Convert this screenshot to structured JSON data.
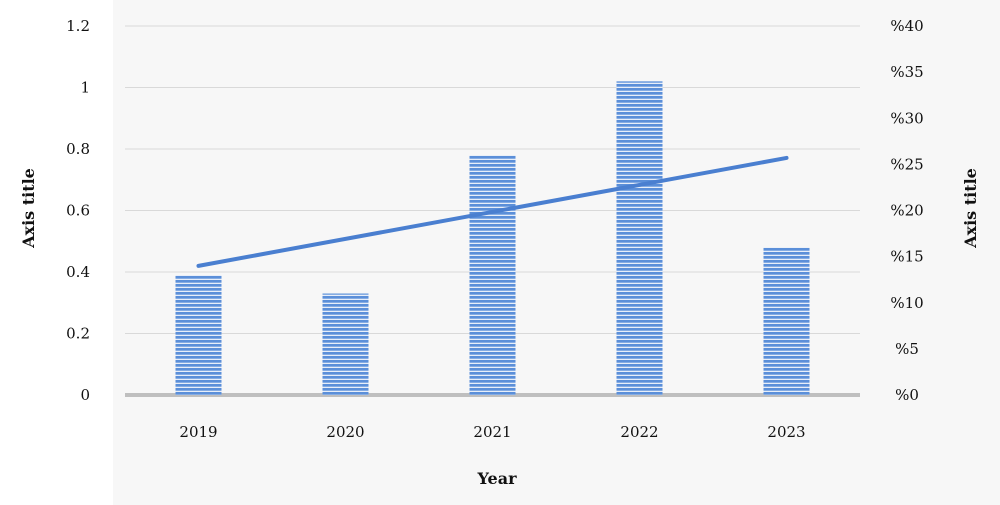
{
  "chart_data": {
    "type": "bar",
    "categories": [
      "2019",
      "2020",
      "2021",
      "2022",
      "2023"
    ],
    "values": [
      0.39,
      0.33,
      0.78,
      1.02,
      0.48
    ],
    "trend_line": {
      "y2_start": 14,
      "y2_end": 25.7
    },
    "xlabel": "Year",
    "ylabel": "Axis title",
    "y2label": "Axis title",
    "ylim": [
      0,
      1.2
    ],
    "y_ticks": [
      "0",
      "0.2",
      "0.4",
      "0.6",
      "0.8",
      "1",
      "1.2"
    ],
    "y2lim": [
      0,
      40
    ],
    "y2_ticks": [
      "%0",
      "%5",
      "%10",
      "%15",
      "%20",
      "%25",
      "%30",
      "%35",
      "%40"
    ],
    "grid": true,
    "colors": {
      "bar_fill": "#5b8fd9",
      "bar_stripe": "#ffffff",
      "line": "#4a7fd0",
      "grid": "#d9d9d9",
      "baseline": "#bfbfbf"
    }
  }
}
